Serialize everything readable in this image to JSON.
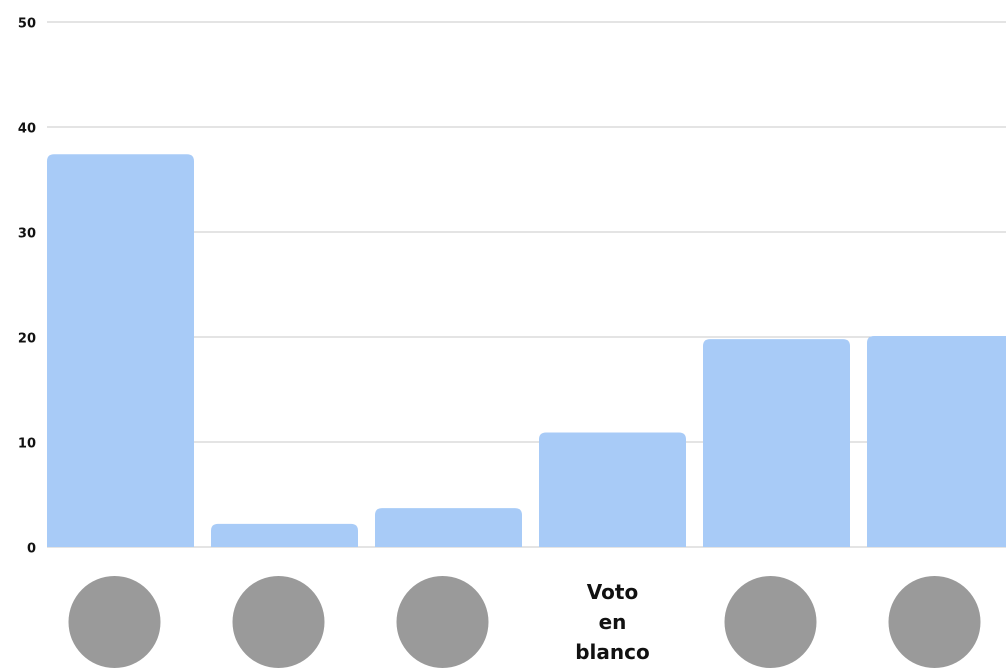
{
  "chart_data": {
    "type": "bar",
    "categories": [
      null,
      null,
      null,
      "Voto en blanco",
      null,
      null
    ],
    "values": [
      37.4,
      2.2,
      3.7,
      10.9,
      19.8,
      20.1
    ],
    "color": "#a8cbf7",
    "ylim": [
      0,
      50
    ],
    "yticks": [
      0,
      10,
      20,
      30,
      40,
      50
    ],
    "grid": true
  }
}
